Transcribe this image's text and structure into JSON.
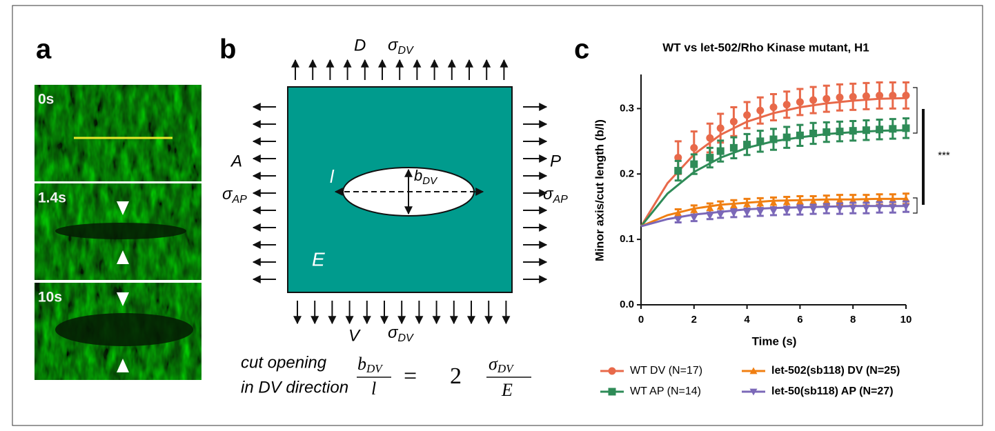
{
  "panel_labels": [
    "a",
    "b",
    "c"
  ],
  "micrographs": [
    {
      "time": "0s"
    },
    {
      "time": "1.4s"
    },
    {
      "time": "10s"
    }
  ],
  "diagram": {
    "top_label": "D",
    "bottom_label": "V",
    "left_label": "A",
    "right_label": "P",
    "stress_symbol": "σ",
    "dv_subscript": "DV",
    "ap_subscript": "AP",
    "cut_length": "l",
    "opening": "b",
    "modulus": "E",
    "caption_lines": [
      "cut opening",
      "in DV direction"
    ],
    "equation": {
      "equals": "=",
      "factor": "2"
    }
  },
  "chart_data": {
    "type": "line",
    "title": "WT vs let-502/Rho Kinase mutant, H1",
    "xlabel": "Time (s)",
    "ylabel": "Minor axis/cut length (b/l)",
    "xlim": [
      0,
      10
    ],
    "xticks": [
      0,
      2,
      4,
      6,
      8,
      10
    ],
    "ylim": [
      0,
      0.35
    ],
    "yticks": [
      {
        "value": 0,
        "label": "0.0"
      },
      0.1,
      0.2,
      0.3
    ],
    "x": [
      1.4,
      2.0,
      2.6,
      3.0,
      3.5,
      4.0,
      4.5,
      5.0,
      5.5,
      6.0,
      6.5,
      7.0,
      7.5,
      8.0,
      8.5,
      9.0,
      9.5,
      10.0
    ],
    "fit_x": [
      0,
      1,
      2,
      3,
      4,
      5,
      6,
      7,
      8,
      9,
      10
    ],
    "series": [
      {
        "name": "WT DV (N=17)",
        "color": "#e8694a",
        "marker": "circle",
        "values": [
          0.225,
          0.24,
          0.255,
          0.27,
          0.28,
          0.29,
          0.297,
          0.302,
          0.306,
          0.31,
          0.313,
          0.315,
          0.317,
          0.318,
          0.319,
          0.32,
          0.32,
          0.32
        ],
        "errors": [
          0.025,
          0.025,
          0.022,
          0.022,
          0.022,
          0.02,
          0.02,
          0.02,
          0.02,
          0.02,
          0.02,
          0.02,
          0.02,
          0.02,
          0.02,
          0.02,
          0.02,
          0.02
        ],
        "fit": [
          0.12,
          0.186,
          0.23,
          0.26,
          0.28,
          0.293,
          0.302,
          0.308,
          0.312,
          0.315,
          0.316
        ]
      },
      {
        "name": "WT AP (N=14)",
        "color": "#2e8b57",
        "marker": "square",
        "values": [
          0.205,
          0.215,
          0.225,
          0.235,
          0.24,
          0.245,
          0.25,
          0.253,
          0.256,
          0.259,
          0.262,
          0.264,
          0.265,
          0.266,
          0.267,
          0.268,
          0.269,
          0.27
        ],
        "errors": [
          0.015,
          0.015,
          0.015,
          0.016,
          0.016,
          0.016,
          0.016,
          0.016,
          0.016,
          0.016,
          0.016,
          0.015,
          0.015,
          0.015,
          0.015,
          0.015,
          0.015,
          0.015
        ],
        "fit": [
          0.12,
          0.17,
          0.203,
          0.225,
          0.24,
          0.25,
          0.256,
          0.261,
          0.264,
          0.266,
          0.267
        ]
      },
      {
        "name": "let-502(sb118) DV (N=25)",
        "color": "#f07f12",
        "marker": "triangle-up",
        "values": [
          0.14,
          0.145,
          0.148,
          0.15,
          0.152,
          0.154,
          0.155,
          0.156,
          0.157,
          0.158,
          0.158,
          0.159,
          0.16,
          0.16,
          0.16,
          0.161,
          0.161,
          0.162
        ],
        "errors": [
          0.006,
          0.007,
          0.007,
          0.008,
          0.008,
          0.008,
          0.008,
          0.008,
          0.008,
          0.008,
          0.008,
          0.008,
          0.008,
          0.008,
          0.008,
          0.008,
          0.008,
          0.008
        ],
        "fit": [
          0.12,
          0.137,
          0.147,
          0.153,
          0.156,
          0.159,
          0.16,
          0.161,
          0.161,
          0.162,
          0.162
        ]
      },
      {
        "name": "let-50(sb118) AP (N=27)",
        "color": "#7b68b8",
        "marker": "triangle-down",
        "values": [
          0.13,
          0.133,
          0.136,
          0.138,
          0.14,
          0.141,
          0.142,
          0.143,
          0.144,
          0.145,
          0.146,
          0.147,
          0.147,
          0.148,
          0.148,
          0.149,
          0.149,
          0.15
        ],
        "errors": [
          0.004,
          0.005,
          0.005,
          0.005,
          0.006,
          0.006,
          0.006,
          0.006,
          0.006,
          0.007,
          0.007,
          0.007,
          0.008,
          0.008,
          0.008,
          0.008,
          0.008,
          0.008
        ],
        "fit": [
          0.12,
          0.131,
          0.138,
          0.142,
          0.146,
          0.148,
          0.149,
          0.15,
          0.151,
          0.151,
          0.151
        ]
      }
    ],
    "significance": "***"
  }
}
